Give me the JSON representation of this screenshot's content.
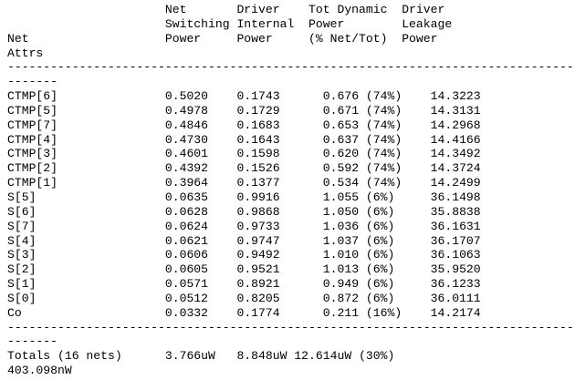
{
  "report": {
    "header": {
      "row_label_lines": [
        "",
        "",
        "Net",
        "Attrs"
      ],
      "columns": [
        {
          "lines": [
            "Net",
            "Switching",
            "Power",
            ""
          ]
        },
        {
          "lines": [
            "Driver",
            "Internal",
            "Power",
            ""
          ]
        },
        {
          "lines": [
            "Tot Dynamic",
            "Power",
            "(% Net/Tot)",
            ""
          ]
        },
        {
          "lines": [
            "Driver",
            "Leakage",
            "Power",
            ""
          ]
        }
      ]
    },
    "separator_long": "--------------------------------------------------------------------------------",
    "separator_short": "-------",
    "rows": [
      {
        "net": "CTMP[6]",
        "switching": "0.5020",
        "internal": "0.1743",
        "dynamic": "0.676",
        "pct": "(74%)",
        "leakage": "14.3223"
      },
      {
        "net": "CTMP[5]",
        "switching": "0.4978",
        "internal": "0.1729",
        "dynamic": "0.671",
        "pct": "(74%)",
        "leakage": "14.3131"
      },
      {
        "net": "CTMP[7]",
        "switching": "0.4846",
        "internal": "0.1683",
        "dynamic": "0.653",
        "pct": "(74%)",
        "leakage": "14.2968"
      },
      {
        "net": "CTMP[4]",
        "switching": "0.4730",
        "internal": "0.1643",
        "dynamic": "0.637",
        "pct": "(74%)",
        "leakage": "14.4166"
      },
      {
        "net": "CTMP[3]",
        "switching": "0.4601",
        "internal": "0.1598",
        "dynamic": "0.620",
        "pct": "(74%)",
        "leakage": "14.3492"
      },
      {
        "net": "CTMP[2]",
        "switching": "0.4392",
        "internal": "0.1526",
        "dynamic": "0.592",
        "pct": "(74%)",
        "leakage": "14.3724"
      },
      {
        "net": "CTMP[1]",
        "switching": "0.3964",
        "internal": "0.1377",
        "dynamic": "0.534",
        "pct": "(74%)",
        "leakage": "14.2499"
      },
      {
        "net": "S[5]",
        "switching": "0.0635",
        "internal": "0.9916",
        "dynamic": "1.055",
        "pct": "(6%)",
        "leakage": "36.1498"
      },
      {
        "net": "S[6]",
        "switching": "0.0628",
        "internal": "0.9868",
        "dynamic": "1.050",
        "pct": "(6%)",
        "leakage": "35.8838"
      },
      {
        "net": "S[7]",
        "switching": "0.0624",
        "internal": "0.9733",
        "dynamic": "1.036",
        "pct": "(6%)",
        "leakage": "36.1631"
      },
      {
        "net": "S[4]",
        "switching": "0.0621",
        "internal": "0.9747",
        "dynamic": "1.037",
        "pct": "(6%)",
        "leakage": "36.1707"
      },
      {
        "net": "S[3]",
        "switching": "0.0606",
        "internal": "0.9492",
        "dynamic": "1.010",
        "pct": "(6%)",
        "leakage": "36.1063"
      },
      {
        "net": "S[2]",
        "switching": "0.0605",
        "internal": "0.9521",
        "dynamic": "1.013",
        "pct": "(6%)",
        "leakage": "35.9520"
      },
      {
        "net": "S[1]",
        "switching": "0.0571",
        "internal": "0.8921",
        "dynamic": "0.949",
        "pct": "(6%)",
        "leakage": "36.1233"
      },
      {
        "net": "S[0]",
        "switching": "0.0512",
        "internal": "0.8205",
        "dynamic": "0.872",
        "pct": "(6%)",
        "leakage": "36.0111"
      },
      {
        "net": "Co",
        "switching": "0.0332",
        "internal": "0.1774",
        "dynamic": "0.211",
        "pct": "(16%)",
        "leakage": "14.2174"
      }
    ],
    "totals": {
      "label": "Totals (16 nets)",
      "switching": "3.766uW",
      "internal": "8.848uW",
      "dynamic": "12.614uW",
      "pct": "(30%)",
      "leakage": "403.098nW"
    }
  }
}
